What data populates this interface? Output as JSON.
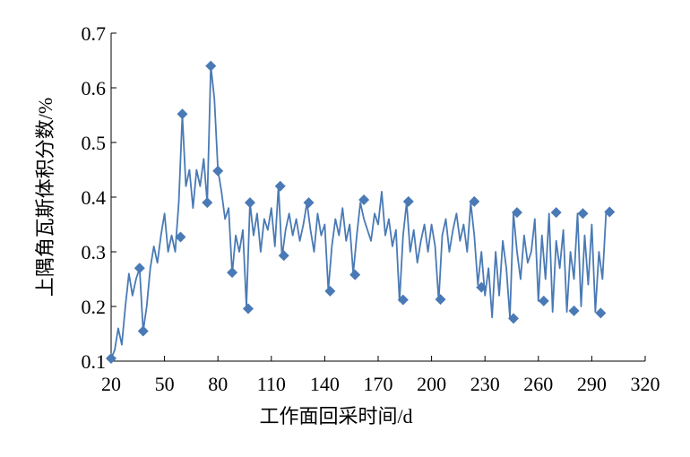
{
  "chart_data": {
    "type": "line",
    "x_label": "工作面回采时间/d",
    "y_label": "上隅角瓦斯体积分数/%",
    "xlim": [
      20,
      320
    ],
    "xticks": [
      20,
      50,
      80,
      110,
      140,
      170,
      200,
      230,
      260,
      290,
      320
    ],
    "ylim": [
      0.1,
      0.7
    ],
    "yticks": [
      0.1,
      0.2,
      0.3,
      0.4,
      0.5,
      0.6,
      0.7
    ],
    "series": [
      {
        "color": "#4a7ab5",
        "style": "line",
        "x": [
          20,
          22,
          24,
          26,
          28,
          30,
          32,
          34,
          36,
          38,
          40,
          42,
          44,
          46,
          48,
          50,
          52,
          54,
          56,
          58,
          60,
          62,
          64,
          66,
          68,
          70,
          72,
          74,
          76,
          78,
          80,
          82,
          84,
          86,
          88,
          90,
          92,
          94,
          96,
          98,
          100,
          102,
          104,
          106,
          108,
          110,
          112,
          114,
          116,
          118,
          120,
          122,
          124,
          126,
          128,
          130,
          132,
          134,
          136,
          138,
          140,
          142,
          144,
          146,
          148,
          150,
          152,
          154,
          156,
          158,
          160,
          162,
          164,
          166,
          168,
          170,
          172,
          174,
          176,
          178,
          180,
          182,
          184,
          186,
          188,
          190,
          192,
          194,
          196,
          198,
          200,
          202,
          204,
          206,
          208,
          210,
          212,
          214,
          216,
          218,
          220,
          222,
          224,
          226,
          228,
          230,
          232,
          234,
          236,
          238,
          240,
          242,
          244,
          246,
          248,
          250,
          252,
          254,
          256,
          258,
          260,
          262,
          264,
          266,
          268,
          270,
          272,
          274,
          276,
          278,
          280,
          282,
          284,
          286,
          288,
          290,
          292,
          294,
          296,
          298,
          300
        ],
        "values": [
          0.105,
          0.12,
          0.16,
          0.13,
          0.2,
          0.26,
          0.22,
          0.25,
          0.27,
          0.155,
          0.2,
          0.27,
          0.31,
          0.28,
          0.33,
          0.37,
          0.3,
          0.33,
          0.3,
          0.39,
          0.55,
          0.42,
          0.45,
          0.38,
          0.45,
          0.42,
          0.47,
          0.39,
          0.64,
          0.58,
          0.45,
          0.41,
          0.36,
          0.38,
          0.26,
          0.33,
          0.3,
          0.34,
          0.2,
          0.39,
          0.33,
          0.37,
          0.3,
          0.36,
          0.34,
          0.38,
          0.31,
          0.42,
          0.29,
          0.34,
          0.37,
          0.33,
          0.36,
          0.32,
          0.35,
          0.39,
          0.34,
          0.3,
          0.37,
          0.33,
          0.35,
          0.23,
          0.31,
          0.36,
          0.33,
          0.38,
          0.32,
          0.35,
          0.26,
          0.33,
          0.39,
          0.36,
          0.34,
          0.32,
          0.37,
          0.35,
          0.41,
          0.33,
          0.36,
          0.31,
          0.34,
          0.21,
          0.33,
          0.39,
          0.3,
          0.34,
          0.28,
          0.32,
          0.35,
          0.3,
          0.35,
          0.31,
          0.21,
          0.33,
          0.36,
          0.3,
          0.34,
          0.37,
          0.32,
          0.35,
          0.3,
          0.39,
          0.33,
          0.24,
          0.3,
          0.22,
          0.27,
          0.18,
          0.3,
          0.22,
          0.32,
          0.27,
          0.18,
          0.37,
          0.3,
          0.25,
          0.33,
          0.28,
          0.3,
          0.36,
          0.21,
          0.33,
          0.25,
          0.37,
          0.19,
          0.32,
          0.27,
          0.34,
          0.19,
          0.3,
          0.25,
          0.37,
          0.2,
          0.33,
          0.24,
          0.35,
          0.19,
          0.3,
          0.25,
          0.37,
          0.37
        ]
      },
      {
        "color": "#4a7ab5",
        "style": "diamond",
        "x": [
          20,
          36,
          38,
          59,
          60,
          74,
          76,
          80,
          88,
          97,
          98,
          115,
          117,
          131,
          143,
          157,
          162,
          184,
          187,
          205,
          224,
          228,
          246,
          248,
          263,
          270,
          280,
          285,
          295,
          300
        ],
        "values": [
          0.105,
          0.27,
          0.155,
          0.327,
          0.552,
          0.39,
          0.64,
          0.448,
          0.262,
          0.196,
          0.39,
          0.42,
          0.293,
          0.39,
          0.228,
          0.258,
          0.395,
          0.212,
          0.392,
          0.213,
          0.392,
          0.235,
          0.178,
          0.372,
          0.21,
          0.372,
          0.192,
          0.37,
          0.188,
          0.373
        ]
      }
    ]
  }
}
